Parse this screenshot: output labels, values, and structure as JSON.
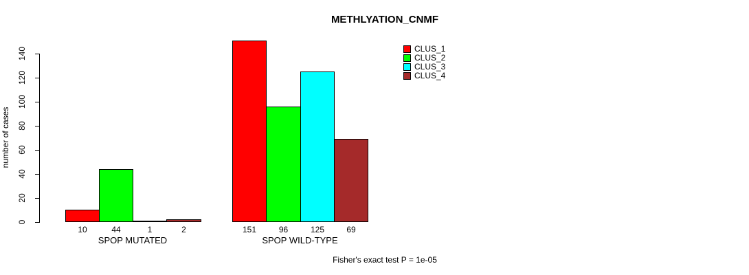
{
  "chart_data": {
    "type": "bar",
    "title": "METHLYATION_CNMF",
    "ylabel": "number of cases",
    "xlabel": "",
    "ylim": [
      0,
      140
    ],
    "yticks": [
      0,
      20,
      40,
      60,
      80,
      100,
      120,
      140
    ],
    "grid": false,
    "legend_position": "top-right",
    "categories": [
      "SPOP MUTATED",
      "SPOP WILD-TYPE"
    ],
    "series": [
      {
        "name": "CLUS_1",
        "color": "#FF0000",
        "values": [
          10,
          151
        ]
      },
      {
        "name": "CLUS_2",
        "color": "#00FF00",
        "values": [
          44,
          96
        ]
      },
      {
        "name": "CLUS_3",
        "color": "#00FFFF",
        "values": [
          1,
          125
        ]
      },
      {
        "name": "CLUS_4",
        "color": "#A52A2A",
        "values": [
          2,
          69
        ]
      }
    ],
    "bar_value_labels": [
      [
        "10",
        "44",
        "1",
        "2"
      ],
      [
        "151",
        "96",
        "125",
        "69"
      ]
    ],
    "annotation": "Fisher's exact test P = 1e-05",
    "axis_color": "#000000",
    "bar_border_color": "#000000"
  }
}
